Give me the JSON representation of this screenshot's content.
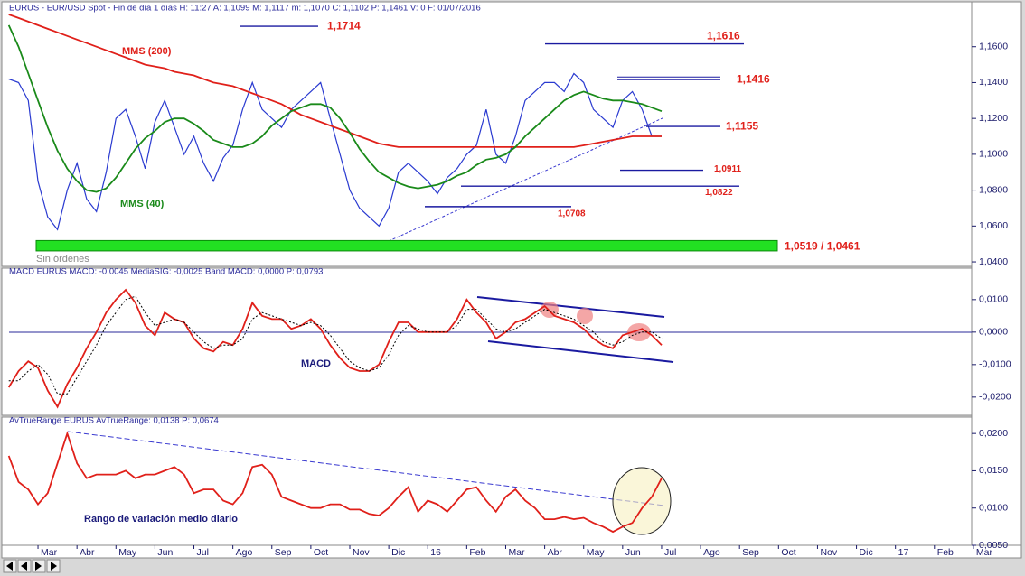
{
  "chart_data": [
    {
      "type": "line",
      "header": "EURUS - EUR/USD Spot - Fin de día 1 días H: 11:27 A: 1,1099 M: 1,1117 m: 1,1070 C: 1,1102 P: 1,1461 V: 0 F: 01/07/2016",
      "status": "Sin órdenes",
      "ylim": [
        1.037,
        1.18
      ],
      "yticks": [
        {
          "value": 1.04,
          "label": "1,0400"
        },
        {
          "value": 1.06,
          "label": "1,0600"
        },
        {
          "value": 1.08,
          "label": "1,0800"
        },
        {
          "value": 1.1,
          "label": "1,1000"
        },
        {
          "value": 1.12,
          "label": "1,1200"
        },
        {
          "value": 1.14,
          "label": "1,1400"
        },
        {
          "value": 1.16,
          "label": "1,1600"
        }
      ],
      "series": [
        {
          "color": "#2a3ad0",
          "values": [
            1.142,
            1.14,
            1.13,
            1.085,
            1.065,
            1.058,
            1.08,
            1.095,
            1.075,
            1.068,
            1.09,
            1.12,
            1.125,
            1.11,
            1.092,
            1.118,
            1.13,
            1.115,
            1.1,
            1.11,
            1.095,
            1.085,
            1.098,
            1.105,
            1.125,
            1.14,
            1.125,
            1.12,
            1.115,
            1.125,
            1.13,
            1.135,
            1.14,
            1.12,
            1.1,
            1.08,
            1.07,
            1.065,
            1.06,
            1.07,
            1.09,
            1.095,
            1.09,
            1.085,
            1.078,
            1.087,
            1.092,
            1.1,
            1.105,
            1.125,
            1.1,
            1.095,
            1.11,
            1.13,
            1.135,
            1.14,
            1.14,
            1.135,
            1.145,
            1.14,
            1.125,
            1.12,
            1.115,
            1.13,
            1.135,
            1.125,
            1.11,
            1.11,
            null,
            null,
            null,
            null,
            null,
            null,
            null,
            null,
            null,
            null,
            null,
            null,
            null,
            null,
            null,
            null,
            null,
            null,
            null,
            null,
            null,
            null,
            null,
            null,
            null,
            null,
            null,
            null,
            null,
            null,
            null,
            null
          ]
        },
        {
          "name": "MMS (200)",
          "color": "#e0201a",
          "values": [
            1.178,
            1.176,
            1.174,
            1.172,
            1.17,
            1.168,
            1.166,
            1.164,
            1.162,
            1.16,
            1.158,
            1.156,
            1.154,
            1.152,
            1.15,
            1.149,
            1.148,
            1.146,
            1.145,
            1.144,
            1.142,
            1.14,
            1.139,
            1.138,
            1.136,
            1.134,
            1.132,
            1.13,
            1.128,
            1.125,
            1.122,
            1.12,
            1.118,
            1.116,
            1.114,
            1.112,
            1.11,
            1.108,
            1.106,
            1.105,
            1.104,
            1.104,
            1.104,
            1.104,
            1.104,
            1.104,
            1.104,
            1.104,
            1.104,
            1.104,
            1.104,
            1.104,
            1.104,
            1.104,
            1.104,
            1.104,
            1.104,
            1.104,
            1.104,
            1.105,
            1.106,
            1.107,
            1.108,
            1.109,
            1.11,
            1.11,
            1.11,
            1.11,
            null,
            null,
            null,
            null,
            null,
            null,
            null,
            null,
            null,
            null,
            null,
            null,
            null,
            null,
            null,
            null,
            null,
            null,
            null,
            null,
            null,
            null,
            null,
            null,
            null,
            null,
            null,
            null,
            null,
            null,
            null,
            null
          ]
        },
        {
          "name": "MMS (40)",
          "color": "#1a8a1a",
          "values": [
            1.172,
            1.16,
            1.145,
            1.13,
            1.115,
            1.102,
            1.092,
            1.085,
            1.08,
            1.079,
            1.081,
            1.087,
            1.095,
            1.103,
            1.109,
            1.113,
            1.118,
            1.12,
            1.12,
            1.117,
            1.113,
            1.108,
            1.106,
            1.104,
            1.104,
            1.106,
            1.11,
            1.116,
            1.12,
            1.124,
            1.126,
            1.128,
            1.128,
            1.126,
            1.12,
            1.112,
            1.103,
            1.096,
            1.09,
            1.087,
            1.084,
            1.082,
            1.081,
            1.082,
            1.083,
            1.085,
            1.088,
            1.09,
            1.094,
            1.097,
            1.098,
            1.1,
            1.104,
            1.11,
            1.115,
            1.12,
            1.125,
            1.13,
            1.133,
            1.135,
            1.133,
            1.131,
            1.13,
            1.13,
            1.129,
            1.128,
            1.126,
            1.124,
            null,
            null,
            null,
            null,
            null,
            null,
            null,
            null,
            null,
            null,
            null,
            null,
            null,
            null,
            null,
            null,
            null,
            null,
            null,
            null,
            null,
            null,
            null,
            null,
            null,
            null,
            null,
            null,
            null,
            null,
            null,
            null
          ]
        }
      ],
      "annotations": [
        {
          "label": "1,1714",
          "value": 1.1714
        },
        {
          "label": "1,1616",
          "value": 1.1616
        },
        {
          "label": "1,1416",
          "value": 1.1416
        },
        {
          "label": "1,1155",
          "value": 1.1155
        },
        {
          "label": "1,0911",
          "value": 1.0911
        },
        {
          "label": "1,0822",
          "value": 1.0822
        },
        {
          "label": "1,0708",
          "value": 1.0708
        }
      ],
      "band": {
        "label": "1,0519 / 1,0461",
        "values": [
          1.0461,
          1.0519
        ],
        "color": "#22e022"
      }
    },
    {
      "type": "line",
      "header": "MACD EURUS MACD: -0,0045 MediaSIG: -0,0025 Band MACD: 0,0000 P: 0,0793",
      "label": "MACD",
      "ylim": [
        -0.0256,
        0.0194
      ],
      "yticks": [
        {
          "value": -0.02,
          "label": "-0,0200"
        },
        {
          "value": -0.01,
          "label": "-0,0100"
        },
        {
          "value": 0,
          "label": "0,0000"
        },
        {
          "value": 0.01,
          "label": "0,0100"
        }
      ],
      "series": [
        {
          "color": "#e0201a",
          "values": [
            -0.017,
            -0.012,
            -0.009,
            -0.011,
            -0.018,
            -0.023,
            -0.016,
            -0.011,
            -0.005,
            0.0,
            0.006,
            0.01,
            0.013,
            0.009,
            0.002,
            -0.001,
            0.006,
            0.004,
            0.003,
            -0.002,
            -0.005,
            -0.006,
            -0.003,
            -0.004,
            0.001,
            0.009,
            0.005,
            0.004,
            0.004,
            0.001,
            0.002,
            0.004,
            0.001,
            -0.004,
            -0.008,
            -0.011,
            -0.012,
            -0.012,
            -0.01,
            -0.003,
            0.003,
            0.003,
            0.0,
            0.0,
            0.0,
            0.0,
            0.004,
            0.01,
            0.006,
            0.003,
            -0.002,
            0.0,
            0.003,
            0.004,
            0.006,
            0.008,
            0.005,
            0.004,
            0.003,
            0.001,
            -0.002,
            -0.004,
            -0.005,
            -0.001,
            0.0,
            0.001,
            -0.001,
            -0.004,
            null,
            null,
            null,
            null,
            null,
            null,
            null,
            null,
            null,
            null,
            null,
            null,
            null,
            null,
            null,
            null,
            null,
            null,
            null,
            null,
            null,
            null,
            null,
            null,
            null,
            null,
            null,
            null,
            null,
            null,
            null,
            null
          ]
        },
        {
          "color": "#000000",
          "values": [
            -0.015,
            -0.015,
            -0.012,
            -0.01,
            -0.013,
            -0.019,
            -0.019,
            -0.014,
            -0.009,
            -0.004,
            0.002,
            0.006,
            0.01,
            0.011,
            0.006,
            0.002,
            0.003,
            0.004,
            0.003,
            0.0,
            -0.003,
            -0.005,
            -0.004,
            -0.004,
            -0.002,
            0.004,
            0.006,
            0.005,
            0.004,
            0.003,
            0.002,
            0.003,
            0.002,
            -0.001,
            -0.005,
            -0.009,
            -0.011,
            -0.012,
            -0.011,
            -0.007,
            -0.001,
            0.002,
            0.001,
            0.0,
            0.0,
            0.0,
            0.002,
            0.007,
            0.007,
            0.004,
            0.001,
            0.0,
            0.001,
            0.003,
            0.005,
            0.007,
            0.006,
            0.005,
            0.004,
            0.002,
            0.0,
            -0.003,
            -0.004,
            -0.003,
            -0.001,
            0.0,
            0.0,
            -0.002,
            null,
            null,
            null,
            null,
            null,
            null,
            null,
            null,
            null,
            null,
            null,
            null,
            null,
            null,
            null,
            null,
            null,
            null,
            null,
            null,
            null,
            null,
            null,
            null,
            null,
            null,
            null,
            null,
            null,
            null,
            null,
            null
          ]
        }
      ]
    },
    {
      "type": "line",
      "header": "AvTrueRange EURUS AvTrueRange: 0,0138 P: 0,0674",
      "label": "Rango de variación medio diario",
      "ylim": [
        0.005,
        0.0222
      ],
      "yticks": [
        {
          "value": 0.005,
          "label": "0,0050"
        },
        {
          "value": 0.01,
          "label": "0,0100"
        },
        {
          "value": 0.015,
          "label": "0,0150"
        },
        {
          "value": 0.02,
          "label": "0,0200"
        }
      ],
      "categories": [
        null,
        null,
        null,
        "Mar",
        null,
        null,
        null,
        "Abr",
        null,
        null,
        null,
        "May",
        null,
        null,
        null,
        "Jun",
        null,
        null,
        null,
        "Jul",
        null,
        null,
        null,
        "Ago",
        null,
        null,
        null,
        "Sep",
        null,
        null,
        null,
        "Oct",
        null,
        null,
        null,
        "Nov",
        null,
        null,
        null,
        "Dic",
        null,
        null,
        null,
        "16",
        null,
        null,
        null,
        "Feb",
        null,
        null,
        null,
        "Mar",
        null,
        null,
        null,
        "Abr",
        null,
        null,
        null,
        "May",
        null,
        null,
        null,
        "Jun",
        null,
        null,
        null,
        "Jul",
        null,
        null,
        null,
        "Ago",
        null,
        null,
        null,
        "Sep",
        null,
        null,
        null,
        "Oct",
        null,
        null,
        null,
        "Nov",
        null,
        null,
        null,
        "Dic",
        null,
        null,
        null,
        "17",
        null,
        null,
        null,
        "Feb",
        null,
        null,
        null,
        "Mar"
      ],
      "series": [
        {
          "color": "#e0201a",
          "values": [
            0.017,
            0.0135,
            0.0125,
            0.0105,
            0.012,
            0.016,
            0.02,
            0.016,
            0.014,
            0.0145,
            0.0145,
            0.0145,
            0.015,
            0.014,
            0.0145,
            0.0145,
            0.015,
            0.0155,
            0.0145,
            0.012,
            0.0125,
            0.0125,
            0.011,
            0.0105,
            0.012,
            0.0155,
            0.0158,
            0.0145,
            0.0115,
            0.011,
            0.0105,
            0.01,
            0.01,
            0.0105,
            0.0105,
            0.0098,
            0.0098,
            0.0092,
            0.009,
            0.01,
            0.0115,
            0.0128,
            0.0095,
            0.011,
            0.0105,
            0.0095,
            0.011,
            0.0125,
            0.0128,
            0.011,
            0.0095,
            0.0115,
            0.0125,
            0.011,
            0.01,
            0.0085,
            0.0085,
            0.0088,
            0.0085,
            0.0087,
            0.008,
            0.0075,
            0.0068,
            0.0075,
            0.008,
            0.01,
            0.0115,
            0.014,
            null,
            null,
            null,
            null,
            null,
            null,
            null,
            null,
            null,
            null,
            null,
            null,
            null,
            null,
            null,
            null,
            null,
            null,
            null,
            null,
            null,
            null,
            null,
            null,
            null,
            null,
            null,
            null,
            null,
            null,
            null,
            null
          ]
        }
      ]
    }
  ]
}
